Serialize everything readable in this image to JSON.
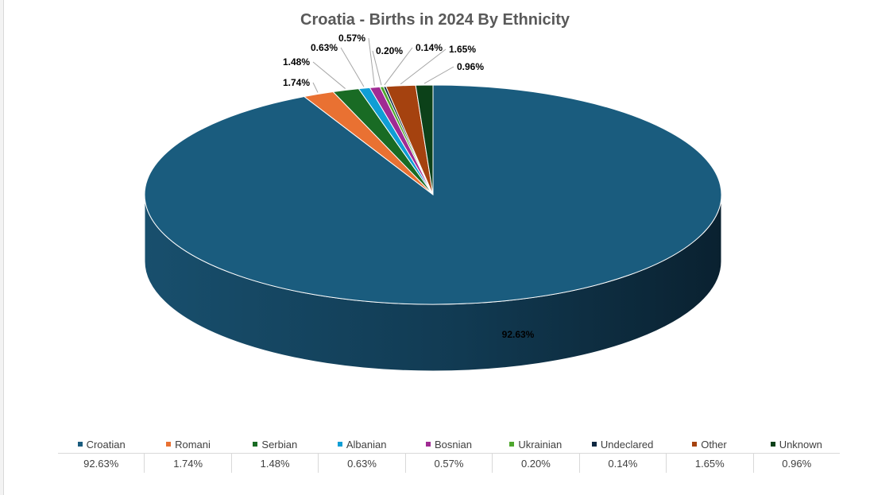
{
  "chart_data": {
    "type": "pie",
    "title": "Croatia - Births in 2024 By Ethnicity",
    "categories": [
      "Croatian",
      "Romani",
      "Serbian",
      "Albanian",
      "Bosnian",
      "Ukrainian",
      "Undeclared",
      "Other",
      "Unknown"
    ],
    "values": [
      92.63,
      1.74,
      1.48,
      0.63,
      0.57,
      0.2,
      0.14,
      1.65,
      0.96
    ],
    "data_labels": [
      "92.63%",
      "1.74%",
      "1.48%",
      "0.63%",
      "0.57%",
      "0.20%",
      "0.14%",
      "1.65%",
      "0.96%"
    ],
    "colors": [
      "#1a5c7e",
      "#e97132",
      "#196b24",
      "#0f9ed5",
      "#a02b93",
      "#4ea72e",
      "#0e2841",
      "#a5420f",
      "#0c4119"
    ],
    "legend_position": "bottom",
    "data_table": true,
    "style": "3d"
  }
}
